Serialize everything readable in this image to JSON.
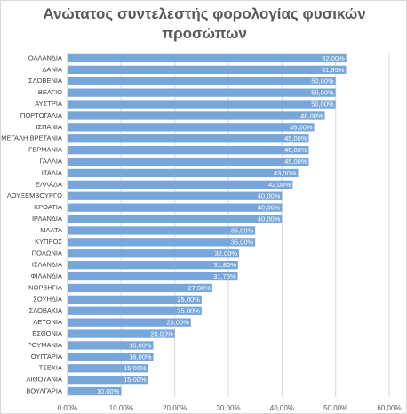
{
  "chart_data": {
    "type": "bar",
    "orientation": "horizontal",
    "title": "Ανώτατος συντελεστής φορολογίας φυσικών προσώπων",
    "categories": [
      "ΟΛΛΑΝΔΙΑ",
      "ΔΑΝΙΑ",
      "ΣΛΟΒΕΝΙΑ",
      "ΒΕΛΓΙΟ",
      "ΑΥΣΤΡΙΑ",
      "ΠΟΡΤΟΓΑΛΙΑ",
      "ΙΣΠΑΝΙΑ",
      "ΜΕΓΑΛΗ ΒΡΕΤΑΝΙΑ",
      "ΓΕΡΜΑΝΙΑ",
      "ΓΑΛΛΙΑ",
      "ΙΤΑΛΙΑ",
      "ΕΛΛΑΔΑ",
      "ΛΟΥΞΕΜΒΟΥΡΓΟ",
      "ΚΡΟΑΤΙΑ",
      "ΙΡΛΑΝΔΙΑ",
      "ΜΑΛΤΑ",
      "ΚΥΠΡΟΣ",
      "ΠΟΛΩΝΙΑ",
      "ΙΣΛΑΝΔΙΑ",
      "ΦΙΛΑΝΔΙΑ",
      "ΝΟΡΒΗΓΙΑ",
      "ΣΟΥΗΔΙΑ",
      "ΣΛΟΒΑΚΙΑ",
      "ΛΕΤΟΝΙΑ",
      "ΕΣΘΟΝΙΑ",
      "ΡΟΥΜΑΝΙΑ",
      "ΟΥΓΓΑΡΙΑ",
      "ΤΣΕΧΙΑ",
      "ΛΙΘΟΥΑΝΙΑ",
      "ΒΟΥΛΓΑΡΙΑ"
    ],
    "values": [
      52,
      51.95,
      50,
      50,
      50,
      48,
      46,
      45,
      45,
      45,
      43,
      42,
      40,
      40,
      40,
      35,
      35,
      32,
      31.8,
      31.75,
      27,
      25,
      25,
      23,
      20,
      16,
      16,
      15,
      15,
      10
    ],
    "value_labels": [
      "52,00%",
      "51,95%",
      "50,00%",
      "50,00%",
      "50,00%",
      "48,00%",
      "46,00%",
      "45,00%",
      "45,00%",
      "45,00%",
      "43,00%",
      "42,00%",
      "40,00%",
      "40,00%",
      "40,00%",
      "35,00%",
      "35,00%",
      "32,00%",
      "31,80%",
      "31,75%",
      "27,00%",
      "25,00%",
      "25,00%",
      "23,00%",
      "20,00%",
      "16,00%",
      "16,00%",
      "15,00%",
      "15,00%",
      "10,00%"
    ],
    "color": "#77a7da",
    "xlim": [
      0,
      60
    ],
    "xticks": [
      {
        "value": 0,
        "label": "0,00%"
      },
      {
        "value": 10,
        "label": "10,00%"
      },
      {
        "value": 20,
        "label": "20,00%"
      },
      {
        "value": 30,
        "label": "30,00%"
      },
      {
        "value": 40,
        "label": "40,00%"
      },
      {
        "value": 50,
        "label": "50,00%"
      },
      {
        "value": 60,
        "label": "60,00%"
      }
    ],
    "grid": true
  }
}
